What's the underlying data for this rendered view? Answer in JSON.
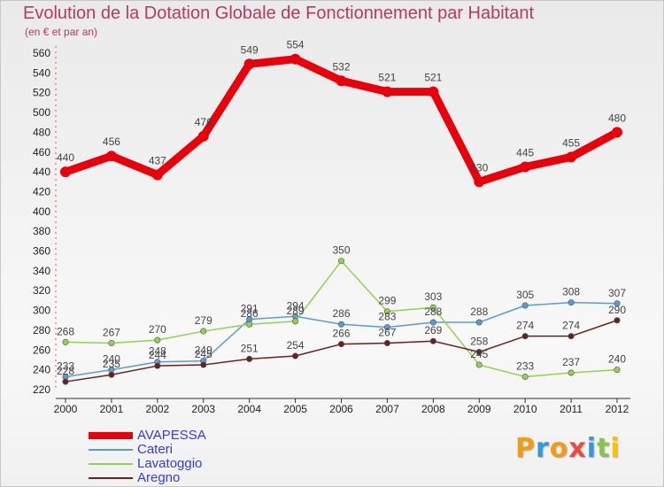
{
  "chart_data": {
    "type": "line",
    "title": "Evolution de la Dotation Globale de Fonctionnement par Habitant",
    "subtitle": "(en € et par an)",
    "xlabel": "",
    "ylabel": "",
    "x": [
      "2000",
      "2001",
      "2002",
      "2003",
      "2004",
      "2005",
      "2006",
      "2007",
      "2008",
      "2009",
      "2010",
      "2011",
      "2012"
    ],
    "yticks": [
      220,
      240,
      260,
      280,
      300,
      320,
      340,
      360,
      380,
      400,
      420,
      440,
      460,
      480,
      500,
      520,
      540,
      560
    ],
    "ylim": [
      220,
      560
    ],
    "grid": false,
    "legend_position": "bottom-left",
    "series": [
      {
        "name": "AVAPESSA",
        "color": "#e8000b",
        "values": [
          440,
          456,
          437,
          476,
          549,
          554,
          532,
          521,
          521,
          430,
          445,
          455,
          480
        ],
        "labels": [
          "440",
          "456",
          "437",
          "476",
          "549",
          "554",
          "532",
          "521",
          "521",
          "430",
          "445",
          "455",
          "480"
        ]
      },
      {
        "name": "Cateri",
        "color": "#5b9bd5",
        "values": [
          233,
          240,
          248,
          249,
          291,
          294,
          286,
          283,
          288,
          288,
          305,
          308,
          307
        ],
        "labels": [
          "233",
          "240",
          "248",
          "249",
          "291",
          "294",
          "286",
          "283",
          "288",
          "288",
          "305",
          "308",
          "307"
        ]
      },
      {
        "name": "Lavatoggio",
        "color": "#8fd34f",
        "values": [
          268,
          267,
          270,
          279,
          286,
          289,
          350,
          299,
          303,
          245,
          233,
          237,
          240
        ],
        "labels": [
          "268",
          "267",
          "270",
          "279",
          "286",
          "289",
          "350",
          "299",
          "303",
          "245",
          "233",
          "237",
          "240"
        ]
      },
      {
        "name": "Aregno",
        "color": "#6b1f1f",
        "values": [
          228,
          235,
          244,
          245,
          251,
          254,
          266,
          267,
          269,
          258,
          274,
          274,
          290
        ],
        "labels": [
          "228",
          "235",
          "244",
          "245",
          "251",
          "254",
          "266",
          "267",
          "269",
          "258",
          "274",
          "274",
          "290"
        ]
      }
    ]
  },
  "logo": {
    "text": "Proxiti",
    "letters": [
      {
        "ch": "P",
        "color": "#f39c12"
      },
      {
        "ch": "r",
        "color": "#3498db"
      },
      {
        "ch": "o",
        "color": "#f39c12"
      },
      {
        "ch": "x",
        "color": "#e74c3c"
      },
      {
        "ch": "i",
        "color": "#3498db"
      },
      {
        "ch": "t",
        "color": "#8bc34a"
      },
      {
        "ch": "i",
        "color": "#f1c40f"
      }
    ]
  }
}
